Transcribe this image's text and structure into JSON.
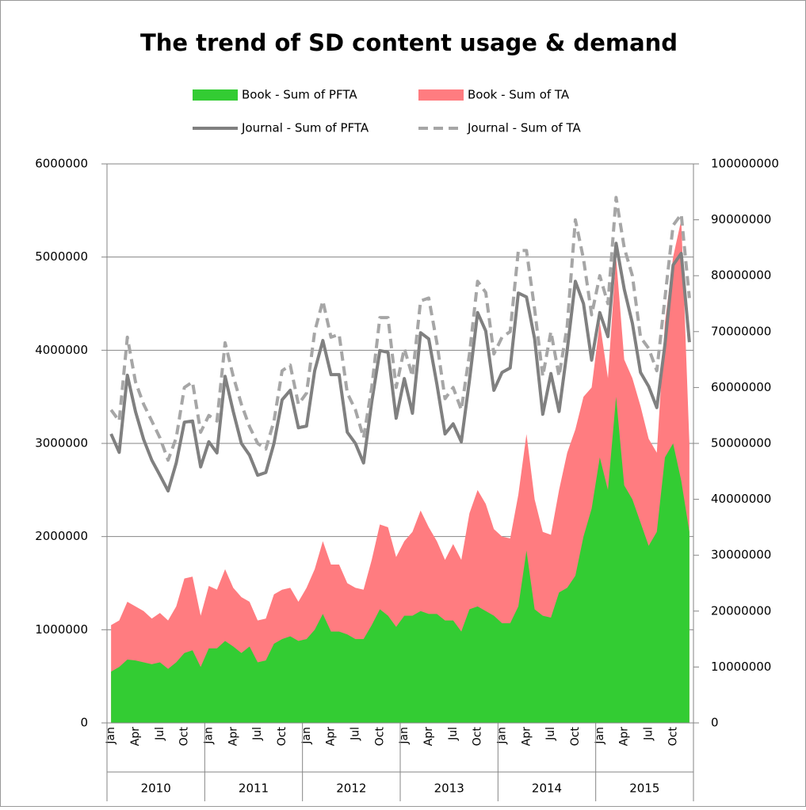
{
  "chart_data": {
    "type": "area-line",
    "title": "The trend of SD content usage & demand",
    "categories": [
      "Jan",
      null,
      null,
      "Apr",
      null,
      null,
      "Jul",
      null,
      null,
      "Oct",
      null,
      null,
      "Jan",
      null,
      null,
      "Apr",
      null,
      null,
      "Jul",
      null,
      null,
      "Oct",
      null,
      null,
      "Jan",
      null,
      null,
      "Apr",
      null,
      null,
      "Jul",
      null,
      null,
      "Oct",
      null,
      null,
      "Jan",
      null,
      null,
      "Apr",
      null,
      null,
      "Jul",
      null,
      null,
      "Oct",
      null,
      null,
      "Jan",
      null,
      null,
      "Apr",
      null,
      null,
      "Jul",
      null,
      null,
      "Oct",
      null,
      null,
      "Jan",
      null,
      null,
      "Apr",
      null,
      null,
      "Jul",
      null,
      null,
      "Oct",
      null,
      null
    ],
    "year_groups": [
      "2010",
      "2011",
      "2012",
      "2013",
      "2014",
      "2015"
    ],
    "ylim": [
      0,
      6000000
    ],
    "yticks": [
      0,
      1000000,
      2000000,
      3000000,
      4000000,
      5000000,
      6000000
    ],
    "y2lim": [
      0,
      100000000
    ],
    "y2ticks": [
      0,
      10000000,
      20000000,
      30000000,
      40000000,
      50000000,
      60000000,
      70000000,
      80000000,
      90000000,
      100000000
    ],
    "grid": true,
    "series": [
      {
        "name": "Book - Sum of PFTA",
        "color": "#33cc33",
        "kind": "area",
        "values": [
          550000,
          600000,
          680000,
          670000,
          650000,
          630000,
          650000,
          580000,
          650000,
          750000,
          780000,
          600000,
          800000,
          800000,
          880000,
          820000,
          750000,
          820000,
          650000,
          670000,
          850000,
          900000,
          930000,
          880000,
          900000,
          1000000,
          1170000,
          980000,
          980000,
          950000,
          900000,
          900000,
          1050000,
          1220000,
          1150000,
          1030000,
          1150000,
          1150000,
          1200000,
          1170000,
          1170000,
          1100000,
          1100000,
          980000,
          1220000,
          1250000,
          1200000,
          1150000,
          1070000,
          1070000,
          1250000,
          1850000,
          1220000,
          1150000,
          1130000,
          1400000,
          1450000,
          1580000,
          2000000,
          2300000,
          2850000,
          2500000,
          3500000,
          2550000,
          2400000,
          2150000,
          1900000,
          2050000,
          2850000,
          3000000,
          2600000,
          2050000
        ]
      },
      {
        "name": "Book - Sum of TA",
        "color": "#ff7c80",
        "kind": "area",
        "values": [
          1050000,
          1100000,
          1300000,
          1250000,
          1200000,
          1120000,
          1180000,
          1100000,
          1250000,
          1550000,
          1570000,
          1150000,
          1470000,
          1430000,
          1650000,
          1450000,
          1350000,
          1300000,
          1100000,
          1120000,
          1380000,
          1430000,
          1450000,
          1300000,
          1450000,
          1650000,
          1950000,
          1700000,
          1700000,
          1500000,
          1450000,
          1430000,
          1750000,
          2130000,
          2100000,
          1780000,
          1950000,
          2050000,
          2280000,
          2100000,
          1950000,
          1750000,
          1920000,
          1750000,
          2250000,
          2500000,
          2350000,
          2080000,
          2000000,
          1980000,
          2450000,
          3100000,
          2400000,
          2050000,
          2020000,
          2500000,
          2900000,
          3150000,
          3500000,
          3600000,
          4300000,
          3700000,
          5000000,
          3900000,
          3700000,
          3400000,
          3050000,
          2900000,
          4300000,
          5000000,
          5400000,
          3000000
        ]
      },
      {
        "name": "Journal - Sum of PFTA",
        "color": "#808080",
        "kind": "line",
        "axis": "y2",
        "dashed": false,
        "values": [
          51700000,
          48400000,
          62200000,
          55700000,
          50700000,
          47000000,
          44300000,
          41500000,
          46500000,
          53800000,
          54000000,
          45800000,
          50300000,
          48300000,
          62000000,
          55700000,
          50000000,
          47900000,
          44300000,
          44800000,
          50000000,
          57800000,
          59500000,
          52800000,
          53100000,
          63000000,
          68400000,
          62300000,
          62300000,
          52000000,
          50000000,
          46500000,
          57400000,
          66600000,
          66300000,
          54500000,
          61600000,
          55400000,
          69800000,
          68700000,
          60600000,
          51700000,
          53500000,
          50300000,
          61300000,
          73400000,
          70100000,
          59500000,
          62700000,
          63500000,
          76900000,
          76200000,
          68700000,
          55200000,
          62500000,
          55700000,
          66700000,
          79000000,
          75000000,
          64900000,
          73400000,
          69100000,
          85800000,
          77600000,
          71500000,
          62700000,
          60200000,
          56400000,
          67700000,
          81900000,
          84000000,
          68100000
        ]
      },
      {
        "name": "Journal - Sum of TA",
        "color": "#a6a6a6",
        "kind": "line",
        "axis": "y2",
        "dashed": true,
        "values": [
          56000000,
          54000000,
          69000000,
          61000000,
          57000000,
          54000000,
          51000000,
          47000000,
          51000000,
          60000000,
          61000000,
          52000000,
          55000000,
          54000000,
          68000000,
          62000000,
          57000000,
          53000000,
          50000000,
          49000000,
          54000000,
          63000000,
          64000000,
          57000000,
          59000000,
          70000000,
          75500000,
          69000000,
          69500000,
          59000000,
          56000000,
          51000000,
          60000000,
          72500000,
          72500000,
          60000000,
          67000000,
          62000000,
          75500000,
          76000000,
          68000000,
          58000000,
          60000000,
          56000000,
          66000000,
          79000000,
          77000000,
          66000000,
          69000000,
          70000000,
          84500000,
          84500000,
          74000000,
          62000000,
          70000000,
          62000000,
          71000000,
          90000000,
          83000000,
          73000000,
          80000000,
          75000000,
          94000000,
          85000000,
          80000000,
          69000000,
          67000000,
          63000000,
          76000000,
          89000000,
          91000000,
          76000000
        ]
      }
    ]
  }
}
